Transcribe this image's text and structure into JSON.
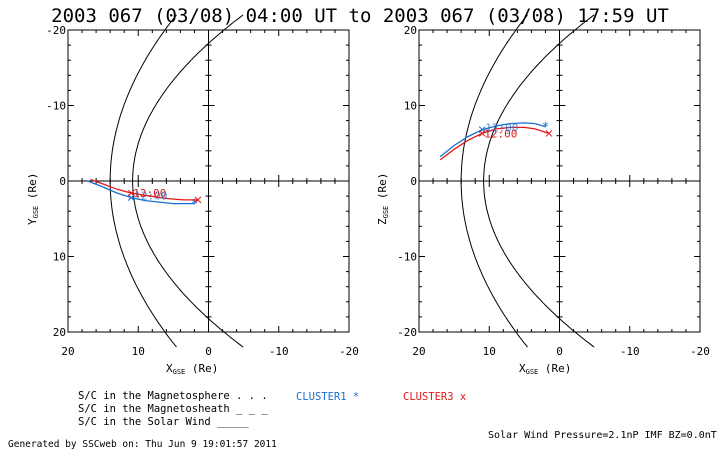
{
  "title": "2003 067 (03/08) 04:00 UT to 2003 067 (03/08) 17:59 UT",
  "colors": {
    "cluster1": "#1a6fd0",
    "cluster3": "#e01818",
    "axes": "#000000"
  },
  "legend": {
    "line1": "S/C in the Magnetosphere . . .",
    "line2": "S/C in the Magnetosheath _ _ _",
    "line3": "S/C in the Solar Wind _____",
    "cluster1": "CLUSTER1 *",
    "cluster3": "CLUSTER3 x"
  },
  "footer": {
    "generated": "Generated by SSCweb on: Thu Jun  9 19:01:57 2011",
    "solar_wind": "Solar Wind Pressure=2.1nP  IMF BZ=0.0nT"
  },
  "chart_data": [
    {
      "type": "line",
      "panel": "left",
      "xlabel_main": "X",
      "xlabel_sub": "GSE",
      "xlabel_unit": " (Re)",
      "ylabel_main": "Y",
      "ylabel_sub": "GSE",
      "ylabel_unit": " (Re)",
      "xlim": [
        20,
        -20
      ],
      "ylim": [
        -20,
        20
      ],
      "xticks": [
        "20",
        "10",
        "0",
        "-10",
        "-20"
      ],
      "yticks": [
        "-20",
        "-10",
        "0",
        "10",
        "20"
      ],
      "time_label": "12:00",
      "boundaries": {
        "magnetopause": {
          "nose": 10.8,
          "flare": 0.0325
        },
        "bow_shock": {
          "nose": 14.0,
          "flare": 0.0195
        }
      },
      "series": [
        {
          "name": "CLUSTER1",
          "x": [
            17.2,
            15.0,
            13.0,
            11.0,
            9.0,
            7.0,
            5.0,
            3.5,
            2.0
          ],
          "y": [
            0.0,
            0.8,
            1.6,
            2.2,
            2.6,
            2.8,
            3.0,
            3.0,
            3.0
          ]
        },
        {
          "name": "CLUSTER3",
          "x": [
            16.8,
            15.0,
            13.0,
            11.0,
            9.0,
            7.0,
            5.0,
            3.5,
            1.5
          ],
          "y": [
            -0.2,
            0.4,
            1.1,
            1.6,
            1.9,
            2.2,
            2.4,
            2.5,
            2.5
          ]
        }
      ]
    },
    {
      "type": "line",
      "panel": "right",
      "xlabel_main": "X",
      "xlabel_sub": "GSE",
      "xlabel_unit": " (Re)",
      "ylabel_main": "Z",
      "ylabel_sub": "GSE",
      "ylabel_unit": " (Re)",
      "xlim": [
        20,
        -20
      ],
      "ylim": [
        20,
        -20
      ],
      "xticks": [
        "20",
        "10",
        "0",
        "-10",
        "-20"
      ],
      "yticks": [
        "20",
        "10",
        "0",
        "-10",
        "-20"
      ],
      "time_label": "12:00",
      "boundaries": {
        "magnetopause": {
          "nose": 10.8,
          "flare": 0.0325
        },
        "bow_shock": {
          "nose": 14.0,
          "flare": 0.0195
        }
      },
      "series": [
        {
          "name": "CLUSTER1",
          "x": [
            17.0,
            15.0,
            13.0,
            11.0,
            9.0,
            7.0,
            5.0,
            3.5,
            2.0
          ],
          "y": [
            3.2,
            4.7,
            5.9,
            6.8,
            7.3,
            7.6,
            7.7,
            7.6,
            7.2
          ]
        },
        {
          "name": "CLUSTER3",
          "x": [
            17.0,
            15.0,
            13.0,
            11.0,
            9.0,
            7.0,
            5.0,
            3.5,
            1.5
          ],
          "y": [
            2.8,
            4.2,
            5.4,
            6.3,
            6.9,
            7.1,
            7.1,
            6.9,
            6.3
          ]
        }
      ]
    }
  ]
}
